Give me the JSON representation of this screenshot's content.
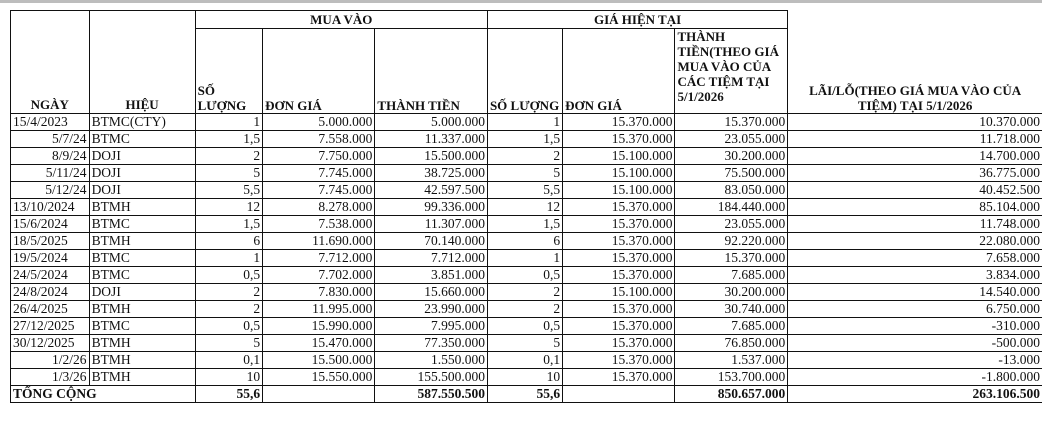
{
  "headers": {
    "ngay": "NGÀY",
    "hieu": "HIỆU",
    "mua_vao": "MUA VÀO",
    "gia_hien_tai": "GIÁ HIỆN TẠI",
    "so_luong": "SỐ LƯỢNG",
    "don_gia": "ĐƠN GIÁ",
    "thanh_tien": "THÀNH TIỀN",
    "so_luong_2": "SỐ LƯỢNG",
    "don_gia_2": "ĐƠN GIÁ",
    "thanh_tien_hien_tai": "THÀNH TIỀN(THEO GIÁ MUA VÀO CỦA CÁC TIỆM TẠI 5/1/2026",
    "lai_lo": "LÃI/LỖ(THEO GIÁ MUA VÀO CỦA TIỆM) TẠI 5/1/2026"
  },
  "rows": [
    {
      "ngay": "15/4/2023",
      "hieu": "BTMC(CTY)",
      "sl": "1",
      "don_gia": "5.000.000",
      "thanh_tien": "5.000.000",
      "sl2": "1",
      "don_gia2": "15.370.000",
      "thanh_tien2": "15.370.000",
      "lai_lo": "10.370.000"
    },
    {
      "ngay": "5/7/24",
      "hieu": "BTMC",
      "sl": "1,5",
      "don_gia": "7.558.000",
      "thanh_tien": "11.337.000",
      "sl2": "1,5",
      "don_gia2": "15.370.000",
      "thanh_tien2": "23.055.000",
      "lai_lo": "11.718.000"
    },
    {
      "ngay": "8/9/24",
      "hieu": "DOJI",
      "sl": "2",
      "don_gia": "7.750.000",
      "thanh_tien": "15.500.000",
      "sl2": "2",
      "don_gia2": "15.100.000",
      "thanh_tien2": "30.200.000",
      "lai_lo": "14.700.000"
    },
    {
      "ngay": "5/11/24",
      "hieu": "DOJI",
      "sl": "5",
      "don_gia": "7.745.000",
      "thanh_tien": "38.725.000",
      "sl2": "5",
      "don_gia2": "15.100.000",
      "thanh_tien2": "75.500.000",
      "lai_lo": "36.775.000"
    },
    {
      "ngay": "5/12/24",
      "hieu": "DOJI",
      "sl": "5,5",
      "don_gia": "7.745.000",
      "thanh_tien": "42.597.500",
      "sl2": "5,5",
      "don_gia2": "15.100.000",
      "thanh_tien2": "83.050.000",
      "lai_lo": "40.452.500"
    },
    {
      "ngay": "13/10/2024",
      "hieu": "BTMH",
      "sl": "12",
      "don_gia": "8.278.000",
      "thanh_tien": "99.336.000",
      "sl2": "12",
      "don_gia2": "15.370.000",
      "thanh_tien2": "184.440.000",
      "lai_lo": "85.104.000"
    },
    {
      "ngay": "15/6/2024",
      "hieu": "BTMC",
      "sl": "1,5",
      "don_gia": "7.538.000",
      "thanh_tien": "11.307.000",
      "sl2": "1,5",
      "don_gia2": "15.370.000",
      "thanh_tien2": "23.055.000",
      "lai_lo": "11.748.000"
    },
    {
      "ngay": "18/5/2025",
      "hieu": "BTMH",
      "sl": "6",
      "don_gia": "11.690.000",
      "thanh_tien": "70.140.000",
      "sl2": "6",
      "don_gia2": "15.370.000",
      "thanh_tien2": "92.220.000",
      "lai_lo": "22.080.000"
    },
    {
      "ngay": "19/5/2024",
      "hieu": "BTMC",
      "sl": "1",
      "don_gia": "7.712.000",
      "thanh_tien": "7.712.000",
      "sl2": "1",
      "don_gia2": "15.370.000",
      "thanh_tien2": "15.370.000",
      "lai_lo": "7.658.000"
    },
    {
      "ngay": "24/5/2024",
      "hieu": "BTMC",
      "sl": "0,5",
      "don_gia": "7.702.000",
      "thanh_tien": "3.851.000",
      "sl2": "0,5",
      "don_gia2": "15.370.000",
      "thanh_tien2": "7.685.000",
      "lai_lo": "3.834.000"
    },
    {
      "ngay": "24/8/2024",
      "hieu": "DOJI",
      "sl": "2",
      "don_gia": "7.830.000",
      "thanh_tien": "15.660.000",
      "sl2": "2",
      "don_gia2": "15.100.000",
      "thanh_tien2": "30.200.000",
      "lai_lo": "14.540.000"
    },
    {
      "ngay": "26/4/2025",
      "hieu": "BTMH",
      "sl": "2",
      "don_gia": "11.995.000",
      "thanh_tien": "23.990.000",
      "sl2": "2",
      "don_gia2": "15.370.000",
      "thanh_tien2": "30.740.000",
      "lai_lo": "6.750.000"
    },
    {
      "ngay": "27/12/2025",
      "hieu": "BTMC",
      "sl": "0,5",
      "don_gia": "15.990.000",
      "thanh_tien": "7.995.000",
      "sl2": "0,5",
      "don_gia2": "15.370.000",
      "thanh_tien2": "7.685.000",
      "lai_lo": "-310.000"
    },
    {
      "ngay": "30/12/2025",
      "hieu": "BTMH",
      "sl": "5",
      "don_gia": "15.470.000",
      "thanh_tien": "77.350.000",
      "sl2": "5",
      "don_gia2": "15.370.000",
      "thanh_tien2": "76.850.000",
      "lai_lo": "-500.000"
    },
    {
      "ngay": "1/2/26",
      "hieu": "BTMH",
      "sl": "0,1",
      "don_gia": "15.500.000",
      "thanh_tien": "1.550.000",
      "sl2": "0,1",
      "don_gia2": "15.370.000",
      "thanh_tien2": "1.537.000",
      "lai_lo": "-13.000"
    },
    {
      "ngay": "1/3/26",
      "hieu": "BTMH",
      "sl": "10",
      "don_gia": "15.550.000",
      "thanh_tien": "155.500.000",
      "sl2": "10",
      "don_gia2": "15.370.000",
      "thanh_tien2": "153.700.000",
      "lai_lo": "-1.800.000"
    }
  ],
  "total": {
    "label": "TỔNG CỘNG",
    "sl": "55,6",
    "thanh_tien": "587.550.500",
    "sl2": "55,6",
    "thanh_tien2": "850.657.000",
    "lai_lo": "263.106.500"
  }
}
